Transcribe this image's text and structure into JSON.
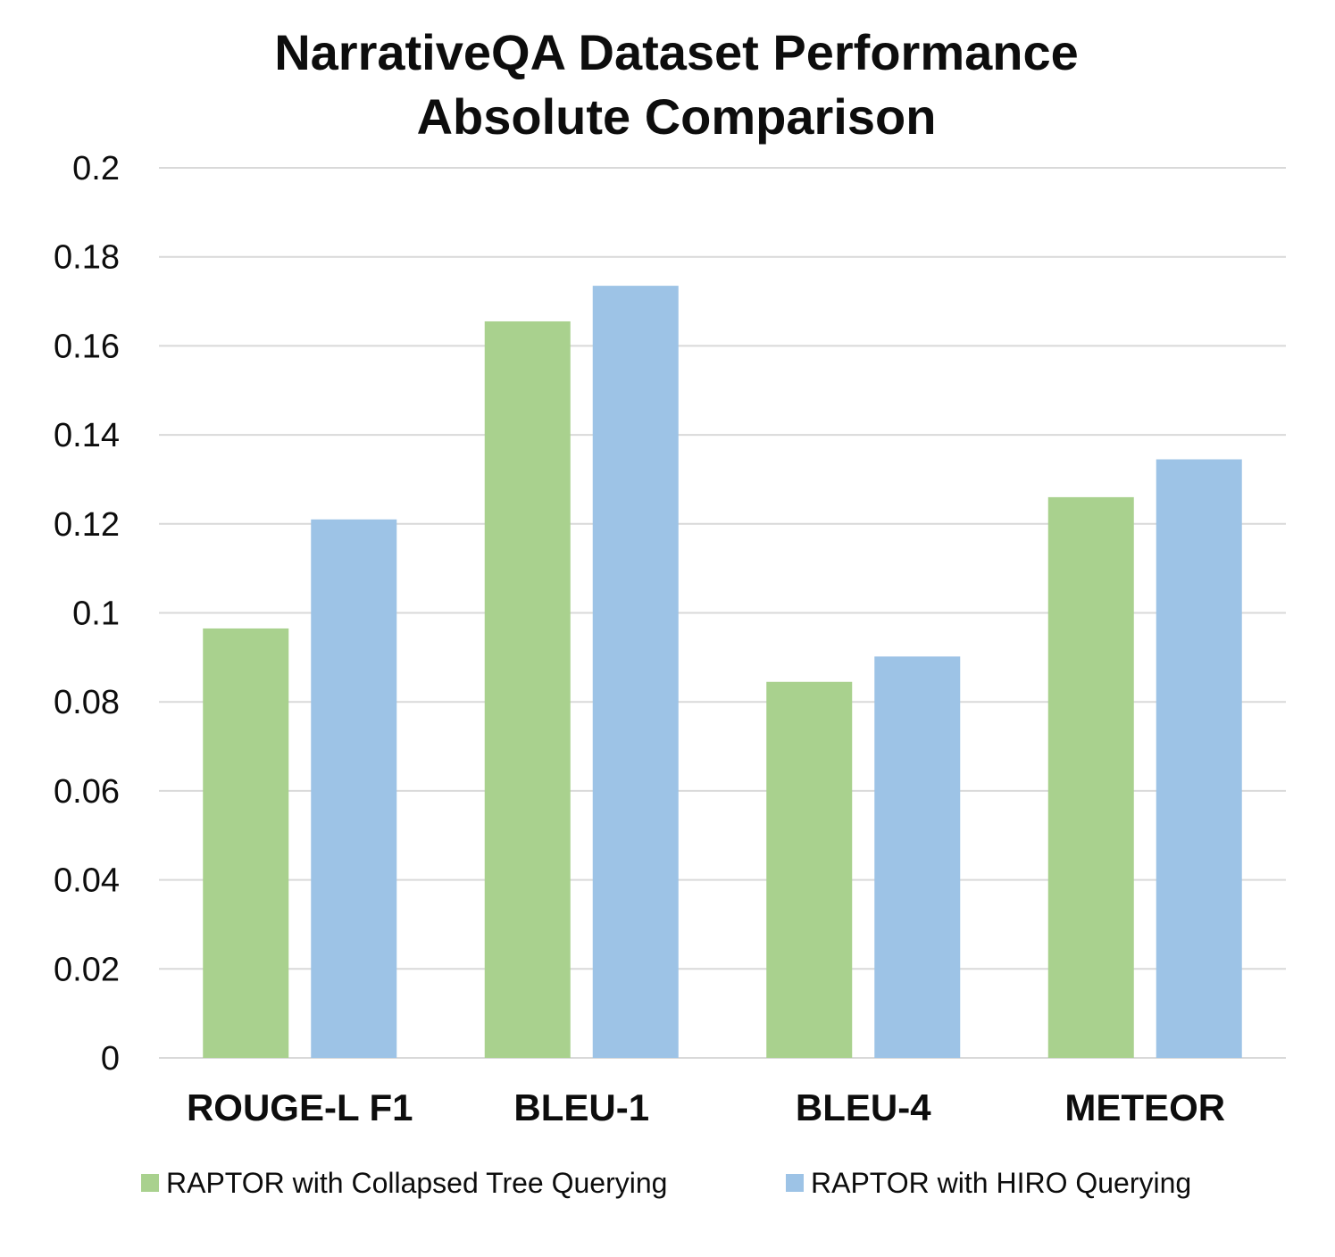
{
  "chart_data": {
    "type": "bar",
    "title_lines": [
      "NarrativeQA Dataset Performance",
      "Absolute Comparison"
    ],
    "categories": [
      "ROUGE-L F1",
      "BLEU-1",
      "BLEU-4",
      "METEOR"
    ],
    "series": [
      {
        "name": "RAPTOR with Collapsed Tree Querying",
        "color": "#a9d18e",
        "values": [
          0.0965,
          0.1655,
          0.0845,
          0.126
        ]
      },
      {
        "name": "RAPTOR with HIRO Querying",
        "color": "#9dc3e6",
        "values": [
          0.121,
          0.1735,
          0.0902,
          0.1345
        ]
      }
    ],
    "yticks": [
      "0",
      "0.02",
      "0.04",
      "0.06",
      "0.08",
      "0.1",
      "0.12",
      "0.14",
      "0.16",
      "0.18",
      "0.2"
    ],
    "ylim": [
      0,
      0.2
    ],
    "grid": true,
    "legend_position": "bottom",
    "gridline_color": "#d9d9d9",
    "text_color": "#0d0d0d"
  }
}
